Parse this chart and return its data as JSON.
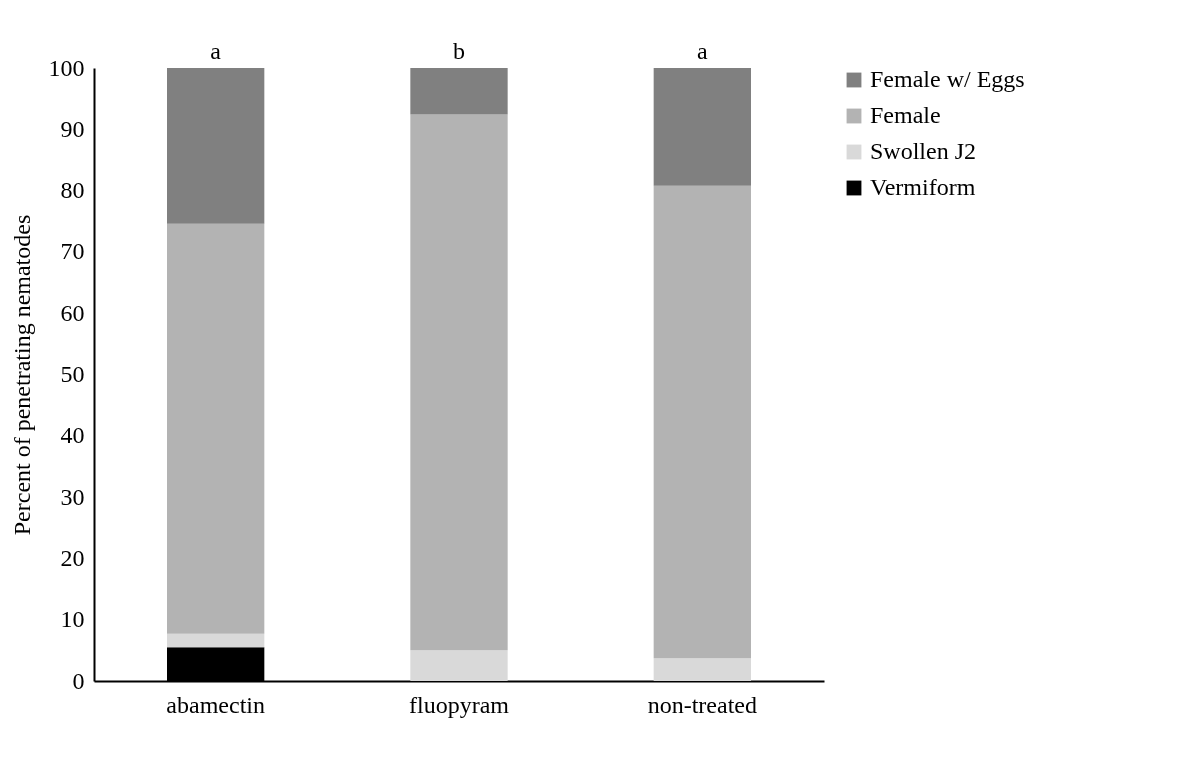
{
  "chart_data": {
    "type": "bar",
    "stacked": true,
    "ylabel": "Percent of penetrating nematodes",
    "categories": [
      "abamectin",
      "fluopyram",
      "non-treated"
    ],
    "series": [
      {
        "name": "Vermiform",
        "color": "#000000",
        "values": [
          5.5,
          0,
          0
        ]
      },
      {
        "name": "Swollen J2",
        "color": "#d9d9d9",
        "values": [
          2.2,
          5.0,
          3.7
        ]
      },
      {
        "name": "Female",
        "color": "#b3b3b3",
        "values": [
          66.9,
          87.4,
          77.1
        ]
      },
      {
        "name": "Female w/ Eggs",
        "color": "#808080",
        "values": [
          25.4,
          7.6,
          19.2
        ]
      }
    ],
    "ylim": [
      0,
      100
    ],
    "yticks": [
      0,
      10,
      20,
      30,
      40,
      50,
      60,
      70,
      80,
      90,
      100
    ],
    "annotations": [
      {
        "text": "a",
        "x": "abamectin",
        "y": 100
      },
      {
        "text": "b",
        "x": "fluopyram",
        "y": 100
      },
      {
        "text": "a",
        "x": "non-treated",
        "y": 100
      }
    ],
    "grid": false,
    "legend": "right"
  }
}
